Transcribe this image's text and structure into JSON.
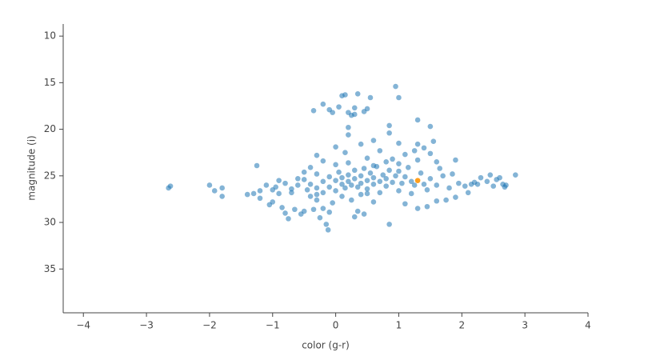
{
  "chart_data": {
    "type": "scatter",
    "x_label": "color (g-r)",
    "y_label": "magnitude (i)",
    "xlim": [
      -4.32,
      4.0
    ],
    "ylim": [
      8.7,
      39.7
    ],
    "y_reversed": true,
    "grid": false,
    "xticks": [
      {
        "value": -4,
        "label": "−4"
      },
      {
        "value": -3,
        "label": "−3"
      },
      {
        "value": -2,
        "label": "−2"
      },
      {
        "value": -1,
        "label": "−1"
      },
      0,
      1,
      2,
      3,
      4
    ],
    "yticks": [
      10,
      15,
      20,
      25,
      30,
      35
    ],
    "series": [
      {
        "color": "#1f77b4",
        "opacity": 0.55,
        "x": [
          -2.65,
          -2.62,
          -2.0,
          -1.92,
          -1.8,
          -1.8,
          -1.4,
          -1.3,
          -1.25,
          -1.2,
          -1.1,
          -1.05,
          -1.0,
          -0.95,
          -0.9,
          -0.85,
          -0.8,
          -0.75,
          -0.7,
          -0.65,
          -0.6,
          -0.55,
          -0.5,
          -0.45,
          -0.4,
          -0.35,
          -0.3,
          -0.25,
          -0.2,
          -0.15,
          -0.12,
          -0.1,
          -0.05,
          0.3,
          0.35,
          0.45,
          0.6,
          0.85,
          1.1,
          1.3,
          1.45,
          1.6,
          1.75,
          1.9,
          2.1,
          1.5,
          1.6,
          1.7,
          1.8,
          1.85,
          1.95,
          2.05,
          2.15,
          2.2,
          2.3,
          2.4,
          2.45,
          2.5,
          2.55,
          2.6,
          2.65,
          2.68,
          2.7,
          2.85,
          2.25,
          1.65,
          1.9,
          1.3,
          1.5,
          0.85,
          0.2,
          0.2,
          0.85,
          0.6,
          0.4,
          0.0,
          1.0,
          1.3,
          1.4,
          1.55,
          1.25,
          -0.3,
          0.15,
          0.7,
          1.1,
          1.5,
          -0.2,
          0.5,
          0.9,
          1.3,
          1.6,
          -0.35,
          -0.2,
          -0.1,
          0.05,
          0.1,
          0.15,
          0.2,
          0.25,
          0.3,
          0.35,
          0.45,
          0.5,
          0.55,
          -0.05,
          0.95,
          1.0,
          0.3,
          -0.6,
          -0.5,
          -0.4,
          -0.3,
          -0.3,
          -0.2,
          -0.2,
          -0.1,
          -0.1,
          0.0,
          0.0,
          0.05,
          0.1,
          0.1,
          0.15,
          0.2,
          0.2,
          0.25,
          0.3,
          0.3,
          0.35,
          0.4,
          0.4,
          0.45,
          0.5,
          0.5,
          0.55,
          0.6,
          0.6,
          0.65,
          0.7,
          0.75,
          0.8,
          0.8,
          0.85,
          0.9,
          0.95,
          1.0,
          1.05,
          1.1,
          1.15,
          1.2,
          1.25,
          1.35,
          1.4,
          -0.8,
          -0.7,
          -0.9,
          -1.0,
          -1.2,
          -0.5,
          -0.4,
          0.0,
          0.2,
          0.6,
          0.8,
          1.0,
          0.1,
          0.4,
          0.7,
          1.0,
          1.2,
          -0.3,
          0.25,
          0.5,
          1.45
        ],
        "values": [
          26.3,
          26.1,
          26.0,
          26.6,
          26.3,
          27.2,
          27.0,
          26.9,
          23.9,
          27.4,
          26.0,
          28.1,
          27.8,
          26.2,
          25.5,
          28.4,
          29.0,
          29.6,
          26.8,
          28.6,
          25.3,
          29.1,
          28.8,
          26.5,
          27.2,
          28.6,
          27.6,
          29.5,
          28.5,
          30.2,
          30.8,
          28.9,
          27.9,
          29.4,
          28.8,
          29.1,
          27.8,
          30.2,
          28.0,
          28.5,
          28.3,
          27.7,
          27.6,
          27.3,
          26.8,
          25.3,
          26.0,
          25.0,
          26.3,
          24.8,
          25.8,
          26.1,
          25.9,
          25.7,
          25.2,
          25.6,
          24.9,
          26.1,
          25.4,
          25.2,
          25.9,
          26.2,
          26.0,
          24.9,
          25.9,
          24.2,
          23.3,
          19.0,
          19.7,
          19.6,
          19.8,
          20.6,
          20.4,
          21.2,
          21.6,
          21.9,
          21.5,
          21.6,
          22.0,
          21.3,
          22.3,
          22.8,
          22.5,
          22.3,
          22.7,
          22.6,
          23.4,
          23.1,
          23.2,
          23.3,
          23.5,
          18.0,
          17.3,
          17.9,
          17.6,
          16.4,
          16.3,
          18.2,
          18.5,
          17.7,
          16.2,
          18.1,
          17.8,
          16.6,
          18.2,
          15.4,
          16.6,
          18.4,
          26.0,
          25.4,
          25.9,
          26.3,
          24.8,
          25.6,
          26.8,
          25.1,
          26.2,
          25.5,
          26.6,
          24.6,
          25.9,
          25.2,
          26.3,
          24.9,
          25.6,
          26.0,
          25.3,
          24.4,
          26.2,
          25.0,
          25.8,
          24.2,
          25.5,
          26.4,
          24.7,
          25.2,
          25.9,
          24.0,
          25.6,
          24.9,
          25.3,
          26.1,
          24.4,
          25.7,
          25.0,
          24.5,
          25.8,
          25.1,
          24.1,
          25.6,
          26.0,
          24.7,
          25.9,
          25.8,
          26.4,
          26.9,
          26.5,
          26.6,
          24.6,
          24.1,
          23.8,
          23.6,
          23.9,
          23.5,
          23.7,
          27.2,
          27.0,
          26.8,
          26.6,
          26.9,
          27.0,
          27.6,
          26.9,
          26.5
        ]
      },
      {
        "color": "#ff9f1c",
        "opacity": 1,
        "x": [
          1.3
        ],
        "values": [
          25.5
        ]
      }
    ]
  }
}
